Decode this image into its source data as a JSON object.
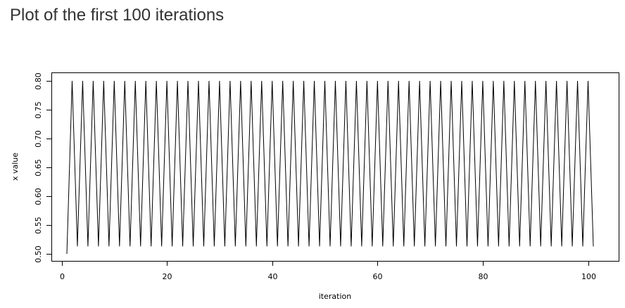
{
  "page": {
    "heading": "Plot of the first 100 iterations"
  },
  "chart_data": {
    "type": "line",
    "title": "",
    "xlabel": "iteration",
    "ylabel": "x value",
    "xlim": [
      1,
      101
    ],
    "ylim": [
      0.5,
      0.8
    ],
    "x_ticks": [
      0,
      20,
      40,
      60,
      80,
      100
    ],
    "y_ticks": [
      0.5,
      0.55,
      0.6,
      0.65,
      0.7,
      0.75,
      0.8
    ],
    "x_tick_labels": [
      "0",
      "20",
      "40",
      "60",
      "80",
      "100"
    ],
    "y_tick_labels": [
      "0.50",
      "0.55",
      "0.60",
      "0.65",
      "0.70",
      "0.75",
      "0.80"
    ],
    "grid": false,
    "legend": "none",
    "line_color": "#000000",
    "series": [
      {
        "x_start": 1,
        "x_step": 1,
        "values": [
          0.5,
          0.8,
          0.513,
          0.8,
          0.513,
          0.8,
          0.513,
          0.8,
          0.513,
          0.8,
          0.513,
          0.8,
          0.513,
          0.8,
          0.513,
          0.8,
          0.513,
          0.8,
          0.513,
          0.8,
          0.513,
          0.8,
          0.513,
          0.8,
          0.513,
          0.8,
          0.513,
          0.8,
          0.513,
          0.8,
          0.513,
          0.8,
          0.513,
          0.8,
          0.513,
          0.8,
          0.513,
          0.8,
          0.513,
          0.8,
          0.513,
          0.8,
          0.513,
          0.8,
          0.513,
          0.8,
          0.513,
          0.8,
          0.513,
          0.8,
          0.513,
          0.8,
          0.513,
          0.8,
          0.513,
          0.8,
          0.513,
          0.8,
          0.513,
          0.8,
          0.513,
          0.8,
          0.513,
          0.8,
          0.513,
          0.8,
          0.513,
          0.8,
          0.513,
          0.8,
          0.513,
          0.8,
          0.513,
          0.8,
          0.513,
          0.8,
          0.513,
          0.8,
          0.513,
          0.8,
          0.513,
          0.8,
          0.513,
          0.8,
          0.513,
          0.8,
          0.513,
          0.8,
          0.513,
          0.8,
          0.513,
          0.8,
          0.513,
          0.8,
          0.513,
          0.8,
          0.513,
          0.8,
          0.513,
          0.8,
          0.513
        ]
      }
    ]
  }
}
